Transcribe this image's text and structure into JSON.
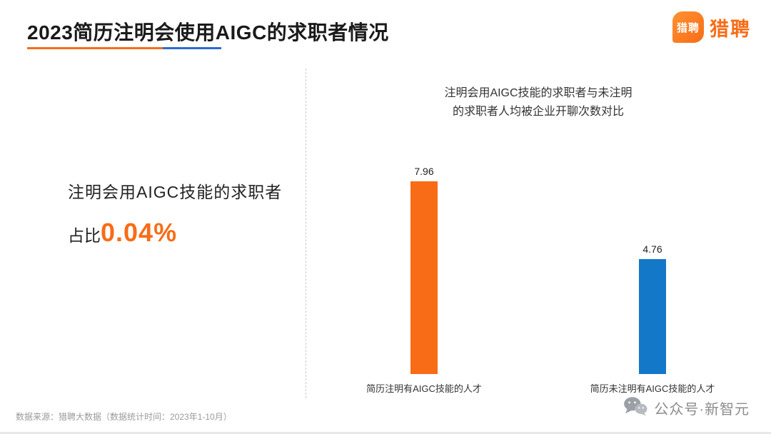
{
  "header": {
    "title": "2023简历注明会使用AIGC的求职者情况",
    "logo_badge_text": "猎聘",
    "logo_text": "猎聘"
  },
  "left_panel": {
    "line1": "注明会用AIGC技能的求职者",
    "ratio_prefix": "占比",
    "ratio_value": "0.04%"
  },
  "chart_data": {
    "type": "bar",
    "title": "注明会用AIGC技能的求职者与未注明的求职者人均被企业开聊次数对比",
    "title_lines": [
      "注明会用AIGC技能的求职者与未注明",
      "的求职者人均被企业开聊次数对比"
    ],
    "categories": [
      "简历注明有AIGC技能的人才",
      "简历未注明有AIGC技能的人才"
    ],
    "values": [
      7.96,
      4.76
    ],
    "colors": [
      "#f86c17",
      "#1478c8"
    ],
    "xlabel": "",
    "ylabel": "",
    "ylim": [
      0,
      8.5
    ],
    "grid": false,
    "legend": false,
    "value_labels": true
  },
  "footer": {
    "source": "数据来源：猎聘大数据（数据统计时间：2023年1-10月）",
    "wechat": "公众号·新智元"
  },
  "colors": {
    "brand_orange": "#f86c17",
    "bar_blue": "#1478c8",
    "underline_blue": "#2b6bd4",
    "text_gray": "#9b9b9b"
  },
  "icons": {
    "logo_badge": "liepin-bubble-icon",
    "footer": "wechat-icon"
  }
}
